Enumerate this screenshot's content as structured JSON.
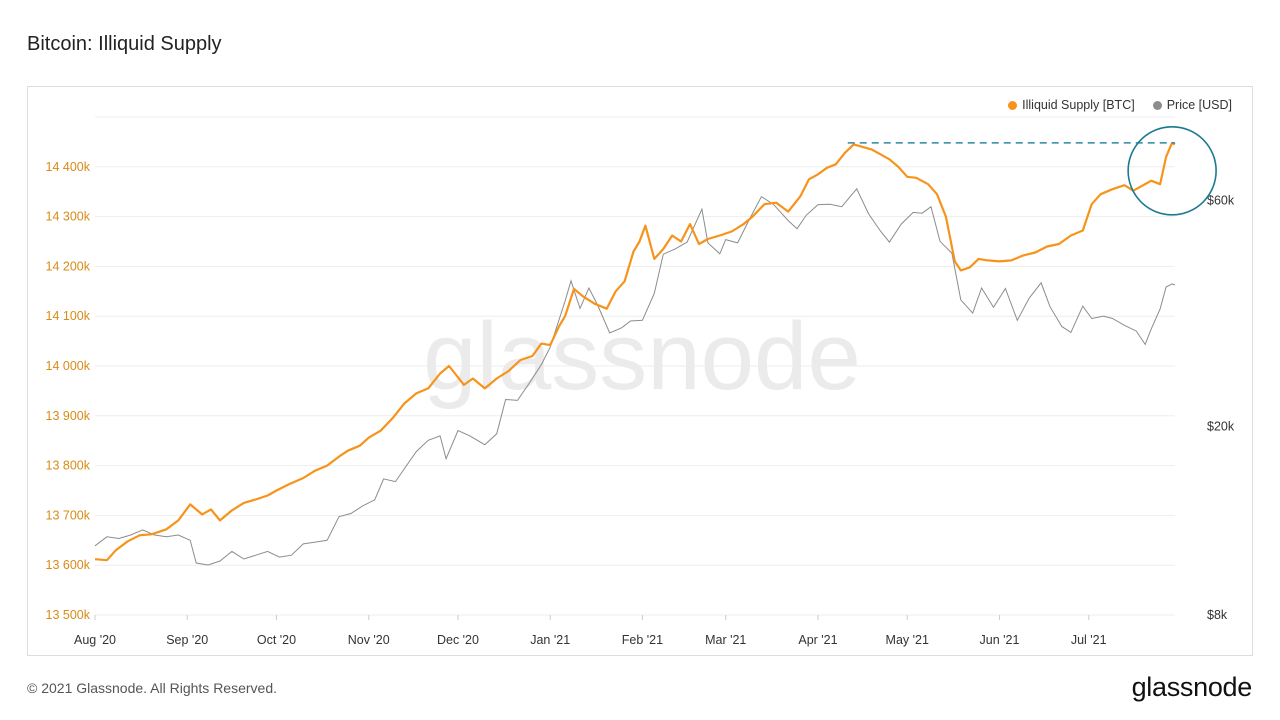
{
  "title": "Bitcoin: Illiquid Supply",
  "footer": {
    "copyright": "© 2021 Glassnode. All Rights Reserved.",
    "brand": "glassnode"
  },
  "watermark": "glassnode",
  "colors": {
    "illiquid": "#f7931a",
    "price": "#8c8c8c",
    "reference": "#2a8aa8",
    "grid": "#eeeeee",
    "left_axis": "#d98b16"
  },
  "legend": [
    {
      "name": "Illiquid Supply [BTC]",
      "color": "#f7931a"
    },
    {
      "name": "Price [USD]",
      "color": "#8c8c8c"
    }
  ],
  "chart_data": {
    "type": "line",
    "left_axis": {
      "range": [
        13500000,
        14500000
      ],
      "ticks": [
        13500000,
        13600000,
        13700000,
        13800000,
        13900000,
        14000000,
        14100000,
        14200000,
        14300000,
        14400000
      ],
      "tick_labels": [
        "13 500k",
        "13 600k",
        "13 700k",
        "13 800k",
        "13 900k",
        "14 000k",
        "14 100k",
        "14 200k",
        "14 300k",
        "14 400k"
      ]
    },
    "right_axis": {
      "scale": "log",
      "range": [
        8000,
        90000
      ],
      "ticks": [
        8000,
        20000,
        60000
      ],
      "tick_labels": [
        "$8k",
        "$20k",
        "$60k"
      ]
    },
    "x_axis": {
      "range": [
        "2020-08-01",
        "2021-07-30"
      ],
      "ticks": [
        "2020-08-01",
        "2020-09-01",
        "2020-10-01",
        "2020-11-01",
        "2020-12-01",
        "2021-01-01",
        "2021-02-01",
        "2021-03-01",
        "2021-04-01",
        "2021-05-01",
        "2021-06-01",
        "2021-07-01"
      ],
      "tick_labels": [
        "Aug '20",
        "Sep '20",
        "Oct '20",
        "Nov '20",
        "Dec '20",
        "Jan '21",
        "Feb '21",
        "Mar '21",
        "Apr '21",
        "May '21",
        "Jun '21",
        "Jul '21"
      ]
    },
    "grid": true,
    "legend_position": "top-right",
    "series": [
      {
        "name": "Illiquid Supply [BTC]",
        "axis": "left",
        "points": [
          [
            "2020-08-01",
            13612000
          ],
          [
            "2020-08-05",
            13610000
          ],
          [
            "2020-08-08",
            13630000
          ],
          [
            "2020-08-12",
            13648000
          ],
          [
            "2020-08-16",
            13660000
          ],
          [
            "2020-08-20",
            13662000
          ],
          [
            "2020-08-25",
            13672000
          ],
          [
            "2020-08-29",
            13690000
          ],
          [
            "2020-09-02",
            13722000
          ],
          [
            "2020-09-06",
            13702000
          ],
          [
            "2020-09-09",
            13712000
          ],
          [
            "2020-09-12",
            13690000
          ],
          [
            "2020-09-16",
            13710000
          ],
          [
            "2020-09-20",
            13725000
          ],
          [
            "2020-09-24",
            13732000
          ],
          [
            "2020-09-28",
            13740000
          ],
          [
            "2020-10-01",
            13750000
          ],
          [
            "2020-10-05",
            13762000
          ],
          [
            "2020-10-10",
            13775000
          ],
          [
            "2020-10-14",
            13790000
          ],
          [
            "2020-10-18",
            13800000
          ],
          [
            "2020-10-22",
            13818000
          ],
          [
            "2020-10-25",
            13830000
          ],
          [
            "2020-10-29",
            13840000
          ],
          [
            "2020-11-01",
            13856000
          ],
          [
            "2020-11-05",
            13870000
          ],
          [
            "2020-11-09",
            13895000
          ],
          [
            "2020-11-13",
            13925000
          ],
          [
            "2020-11-17",
            13945000
          ],
          [
            "2020-11-21",
            13955000
          ],
          [
            "2020-11-25",
            13985000
          ],
          [
            "2020-11-28",
            14000000
          ],
          [
            "2020-11-30",
            13985000
          ],
          [
            "2020-12-03",
            13962000
          ],
          [
            "2020-12-06",
            13975000
          ],
          [
            "2020-12-10",
            13955000
          ],
          [
            "2020-12-14",
            13975000
          ],
          [
            "2020-12-18",
            13990000
          ],
          [
            "2020-12-22",
            14012000
          ],
          [
            "2020-12-26",
            14020000
          ],
          [
            "2020-12-29",
            14045000
          ],
          [
            "2021-01-01",
            14042000
          ],
          [
            "2021-01-04",
            14080000
          ],
          [
            "2021-01-06",
            14100000
          ],
          [
            "2021-01-09",
            14155000
          ],
          [
            "2021-01-12",
            14140000
          ],
          [
            "2021-01-16",
            14125000
          ],
          [
            "2021-01-20",
            14115000
          ],
          [
            "2021-01-23",
            14150000
          ],
          [
            "2021-01-26",
            14170000
          ],
          [
            "2021-01-29",
            14230000
          ],
          [
            "2021-01-31",
            14250000
          ],
          [
            "2021-02-02",
            14282000
          ],
          [
            "2021-02-05",
            14215000
          ],
          [
            "2021-02-08",
            14235000
          ],
          [
            "2021-02-11",
            14262000
          ],
          [
            "2021-02-14",
            14250000
          ],
          [
            "2021-02-17",
            14285000
          ],
          [
            "2021-02-20",
            14245000
          ],
          [
            "2021-02-23",
            14255000
          ],
          [
            "2021-02-27",
            14262000
          ],
          [
            "2021-03-03",
            14270000
          ],
          [
            "2021-03-07",
            14285000
          ],
          [
            "2021-03-10",
            14300000
          ],
          [
            "2021-03-14",
            14325000
          ],
          [
            "2021-03-18",
            14328000
          ],
          [
            "2021-03-22",
            14310000
          ],
          [
            "2021-03-26",
            14340000
          ],
          [
            "2021-03-29",
            14375000
          ],
          [
            "2021-04-01",
            14385000
          ],
          [
            "2021-04-04",
            14398000
          ],
          [
            "2021-04-07",
            14405000
          ],
          [
            "2021-04-10",
            14428000
          ],
          [
            "2021-04-13",
            14445000
          ],
          [
            "2021-04-16",
            14440000
          ],
          [
            "2021-04-19",
            14435000
          ],
          [
            "2021-04-22",
            14425000
          ],
          [
            "2021-04-25",
            14415000
          ],
          [
            "2021-04-28",
            14400000
          ],
          [
            "2021-05-01",
            14380000
          ],
          [
            "2021-05-04",
            14378000
          ],
          [
            "2021-05-08",
            14365000
          ],
          [
            "2021-05-11",
            14345000
          ],
          [
            "2021-05-14",
            14300000
          ],
          [
            "2021-05-17",
            14210000
          ],
          [
            "2021-05-19",
            14192000
          ],
          [
            "2021-05-22",
            14198000
          ],
          [
            "2021-05-25",
            14215000
          ],
          [
            "2021-05-28",
            14212000
          ],
          [
            "2021-06-01",
            14210000
          ],
          [
            "2021-06-05",
            14212000
          ],
          [
            "2021-06-09",
            14222000
          ],
          [
            "2021-06-13",
            14228000
          ],
          [
            "2021-06-17",
            14240000
          ],
          [
            "2021-06-21",
            14245000
          ],
          [
            "2021-06-25",
            14262000
          ],
          [
            "2021-06-29",
            14272000
          ],
          [
            "2021-07-02",
            14325000
          ],
          [
            "2021-07-05",
            14345000
          ],
          [
            "2021-07-09",
            14355000
          ],
          [
            "2021-07-13",
            14363000
          ],
          [
            "2021-07-16",
            14352000
          ],
          [
            "2021-07-19",
            14362000
          ],
          [
            "2021-07-22",
            14372000
          ],
          [
            "2021-07-25",
            14365000
          ],
          [
            "2021-07-27",
            14420000
          ],
          [
            "2021-07-29",
            14448000
          ],
          [
            "2021-07-30",
            14445000
          ]
        ]
      },
      {
        "name": "Price [USD]",
        "axis": "right",
        "points": [
          [
            "2020-08-01",
            11200
          ],
          [
            "2020-08-05",
            11700
          ],
          [
            "2020-08-09",
            11600
          ],
          [
            "2020-08-13",
            11800
          ],
          [
            "2020-08-17",
            12100
          ],
          [
            "2020-08-21",
            11800
          ],
          [
            "2020-08-25",
            11700
          ],
          [
            "2020-08-29",
            11800
          ],
          [
            "2020-09-02",
            11500
          ],
          [
            "2020-09-04",
            10300
          ],
          [
            "2020-09-08",
            10200
          ],
          [
            "2020-09-12",
            10400
          ],
          [
            "2020-09-16",
            10900
          ],
          [
            "2020-09-20",
            10500
          ],
          [
            "2020-09-24",
            10700
          ],
          [
            "2020-09-28",
            10900
          ],
          [
            "2020-10-02",
            10600
          ],
          [
            "2020-10-06",
            10700
          ],
          [
            "2020-10-10",
            11300
          ],
          [
            "2020-10-14",
            11400
          ],
          [
            "2020-10-18",
            11500
          ],
          [
            "2020-10-22",
            12900
          ],
          [
            "2020-10-26",
            13100
          ],
          [
            "2020-10-30",
            13600
          ],
          [
            "2020-11-03",
            14000
          ],
          [
            "2020-11-06",
            15500
          ],
          [
            "2020-11-10",
            15300
          ],
          [
            "2020-11-13",
            16300
          ],
          [
            "2020-11-17",
            17700
          ],
          [
            "2020-11-21",
            18700
          ],
          [
            "2020-11-25",
            19100
          ],
          [
            "2020-11-27",
            17100
          ],
          [
            "2020-12-01",
            19600
          ],
          [
            "2020-12-05",
            19100
          ],
          [
            "2020-12-10",
            18300
          ],
          [
            "2020-12-14",
            19300
          ],
          [
            "2020-12-17",
            22800
          ],
          [
            "2020-12-21",
            22700
          ],
          [
            "2020-12-25",
            24700
          ],
          [
            "2020-12-29",
            27000
          ],
          [
            "2021-01-01",
            29400
          ],
          [
            "2021-01-03",
            32200
          ],
          [
            "2021-01-06",
            36800
          ],
          [
            "2021-01-08",
            40600
          ],
          [
            "2021-01-11",
            35500
          ],
          [
            "2021-01-14",
            39200
          ],
          [
            "2021-01-17",
            36000
          ],
          [
            "2021-01-21",
            31500
          ],
          [
            "2021-01-25",
            32300
          ],
          [
            "2021-01-28",
            33400
          ],
          [
            "2021-02-01",
            33500
          ],
          [
            "2021-02-05",
            38200
          ],
          [
            "2021-02-08",
            46200
          ],
          [
            "2021-02-12",
            47400
          ],
          [
            "2021-02-16",
            49000
          ],
          [
            "2021-02-21",
            57500
          ],
          [
            "2021-02-23",
            48800
          ],
          [
            "2021-02-27",
            46300
          ],
          [
            "2021-03-01",
            49600
          ],
          [
            "2021-03-05",
            48800
          ],
          [
            "2021-03-09",
            54800
          ],
          [
            "2021-03-13",
            61100
          ],
          [
            "2021-03-17",
            58900
          ],
          [
            "2021-03-22",
            54400
          ],
          [
            "2021-03-25",
            52300
          ],
          [
            "2021-03-28",
            55800
          ],
          [
            "2021-04-01",
            58800
          ],
          [
            "2021-04-05",
            58900
          ],
          [
            "2021-04-09",
            58200
          ],
          [
            "2021-04-14",
            63500
          ],
          [
            "2021-04-18",
            56200
          ],
          [
            "2021-04-22",
            51700
          ],
          [
            "2021-04-25",
            49000
          ],
          [
            "2021-04-29",
            53500
          ],
          [
            "2021-05-03",
            56600
          ],
          [
            "2021-05-06",
            56400
          ],
          [
            "2021-05-09",
            58200
          ],
          [
            "2021-05-12",
            49200
          ],
          [
            "2021-05-16",
            46400
          ],
          [
            "2021-05-19",
            37000
          ],
          [
            "2021-05-23",
            34700
          ],
          [
            "2021-05-26",
            39200
          ],
          [
            "2021-05-30",
            35700
          ],
          [
            "2021-06-03",
            39100
          ],
          [
            "2021-06-07",
            33500
          ],
          [
            "2021-06-11",
            37300
          ],
          [
            "2021-06-15",
            40200
          ],
          [
            "2021-06-18",
            35800
          ],
          [
            "2021-06-22",
            32500
          ],
          [
            "2021-06-25",
            31600
          ],
          [
            "2021-06-29",
            35900
          ],
          [
            "2021-07-02",
            33800
          ],
          [
            "2021-07-06",
            34200
          ],
          [
            "2021-07-09",
            33800
          ],
          [
            "2021-07-13",
            32700
          ],
          [
            "2021-07-17",
            31800
          ],
          [
            "2021-07-20",
            29800
          ],
          [
            "2021-07-22",
            32100
          ],
          [
            "2021-07-25",
            35400
          ],
          [
            "2021-07-27",
            39400
          ],
          [
            "2021-07-29",
            40000
          ],
          [
            "2021-07-30",
            39800
          ]
        ]
      }
    ],
    "annotations": [
      {
        "type": "horizontal-dashed-line",
        "y": 14448000,
        "x_range": [
          "2021-04-11",
          "2021-07-30"
        ]
      },
      {
        "type": "circle",
        "center": [
          "2021-07-25",
          14392000
        ]
      }
    ]
  }
}
